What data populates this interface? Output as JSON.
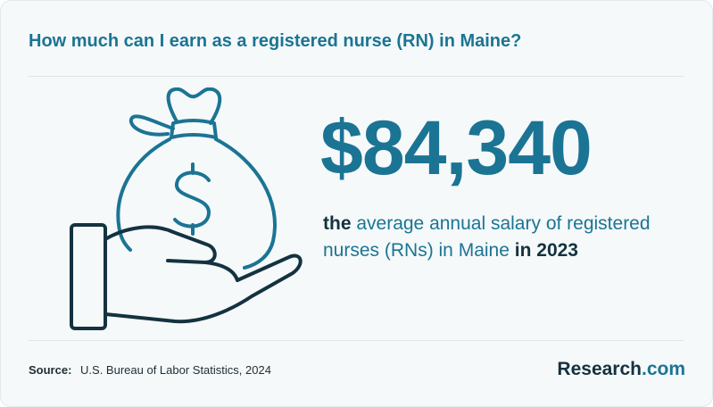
{
  "title": "How much can I earn as a registered nurse (RN) in Maine?",
  "salary": "$84,340",
  "description": {
    "prefix": "the",
    "highlight": "average annual salary of registered nurses (RNs) in Maine",
    "middle": "in",
    "year": "2023"
  },
  "source": {
    "label": "Source:",
    "text": "U.S. Bureau of Labor Statistics, 2024"
  },
  "logo": {
    "main": "Research",
    "suffix": ".com"
  },
  "icons": [
    "money-bag-icon",
    "dollar-sign-icon",
    "open-hand-icon"
  ],
  "colors": {
    "accent": "#1b7494",
    "dark": "#14323f",
    "background": "#f5f9fa"
  }
}
